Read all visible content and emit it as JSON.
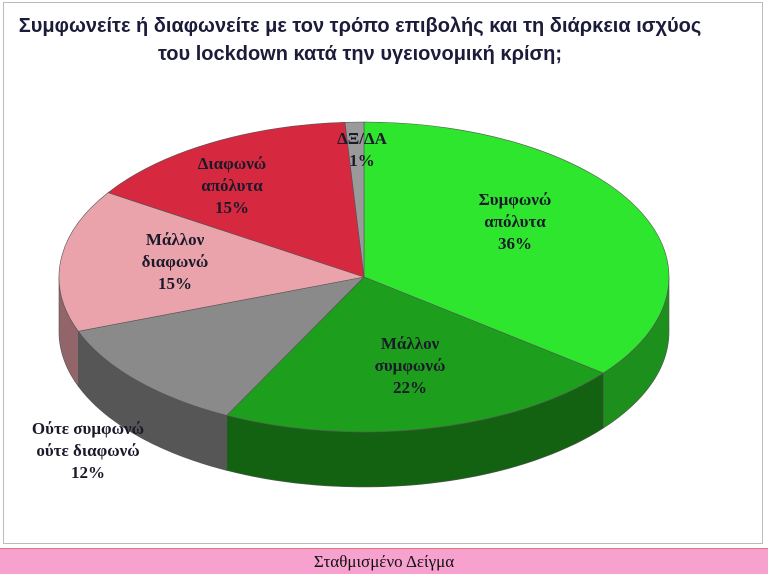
{
  "chart_data": {
    "type": "pie3d",
    "title": "Συμφωνείτε ή διαφωνείτε με τον τρόπο επιβολής και τη διάρκεια ισχύος του lockdown κατά την υγειονομική κρίση;",
    "categories": [
      "Συμφωνώ απόλυτα",
      "Μάλλον συμφωνώ",
      "Ούτε συμφωνώ ούτε διαφωνώ",
      "Μάλλον διαφωνώ",
      "Διαφωνώ απόλυτα",
      "ΔΞ/ΔΑ"
    ],
    "values": [
      36,
      22,
      12,
      15,
      15,
      1
    ],
    "value_labels": [
      "36%",
      "22%",
      "12%",
      "15%",
      "15%",
      "1%"
    ],
    "colors": [
      "#2ee62e",
      "#1d9e1d",
      "#8a8a8a",
      "#eba3ab",
      "#d6283f",
      "#9a9a9a"
    ]
  },
  "footer": "Σταθμισμένο Δείγμα"
}
